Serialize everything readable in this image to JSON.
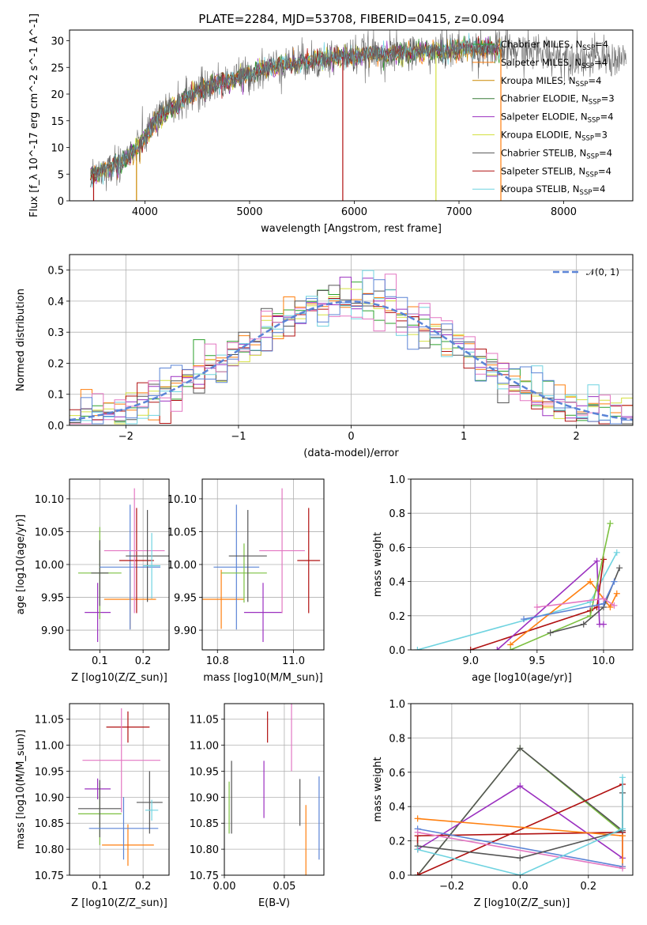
{
  "figure_title": "PLATE=2284, MJD=53708, FIBERID=0415, z=0.094",
  "chart_data": [
    {
      "id": "spectrum",
      "type": "line",
      "title": "PLATE=2284, MJD=53708, FIBERID=0415, z=0.094",
      "xlabel": "wavelength [Angstrom, rest frame]",
      "ylabel": "Flux [f_λ 10^-17 erg cm^-2 s^-1 A^-1]",
      "xlim": [
        3280,
        8660
      ],
      "ylim": [
        0,
        32
      ],
      "xticks": [
        4000,
        5000,
        6000,
        7000,
        8000
      ],
      "yticks": [
        0,
        5,
        10,
        15,
        20,
        25,
        30
      ],
      "grid": false,
      "legend_position": "top-right",
      "series": [
        {
          "name": "Chabrier MILES, N_SSP=4",
          "color": "#2ca02c"
        },
        {
          "name": "Salpeter MILES, N_SSP=4",
          "color": "#ff7f0e"
        },
        {
          "name": "Kroupa MILES, N_SSP=4",
          "color": "#cc8800"
        },
        {
          "name": "Chabrier ELODIE, N_SSP=3",
          "color": "#3a7d3a"
        },
        {
          "name": "Salpeter ELODIE, N_SSP=4",
          "color": "#9b30c0"
        },
        {
          "name": "Kroupa ELODIE, N_SSP=3",
          "color": "#d4e040"
        },
        {
          "name": "Chabrier STELIB, N_SSP=4",
          "color": "#555555"
        },
        {
          "name": "Salpeter STELIB, N_SSP=4",
          "color": "#b01010"
        },
        {
          "name": "Kroupa STELIB, N_SSP=4",
          "color": "#6fd3e0"
        }
      ],
      "spectrum_shape": {
        "x": [
          3500,
          3700,
          3900,
          4100,
          4300,
          4500,
          4700,
          4900,
          5100,
          5300,
          5500,
          5700,
          5900,
          6100,
          6300,
          6500,
          6700,
          6900,
          7100,
          7300,
          7500,
          7700,
          7900,
          8100,
          8300,
          8500
        ],
        "y": [
          5,
          6.5,
          9,
          15,
          18,
          20.5,
          22,
          23,
          24.5,
          25.5,
          26,
          26.5,
          27,
          27.5,
          27.5,
          27.8,
          28,
          28.2,
          28.5,
          28.5,
          28.3,
          28,
          27.5,
          27,
          26.8,
          26.5
        ]
      }
    },
    {
      "id": "residuals",
      "type": "histogram",
      "xlabel": "(data-model)/error",
      "ylabel": "Normed distribution",
      "xlim": [
        -2.5,
        2.5
      ],
      "ylim": [
        0,
        0.55
      ],
      "xticks": [
        -2,
        -1,
        0,
        1,
        2
      ],
      "yticks": [
        0.0,
        0.1,
        0.2,
        0.3,
        0.4,
        0.5
      ],
      "grid": true,
      "legend_position": "top-right",
      "reference_curve": {
        "name": "𝒩(0, 1)",
        "color": "#5b84d6",
        "mean": 0,
        "sigma": 1
      },
      "hist_colors": [
        "#2ca02c",
        "#ff7f0e",
        "#9b30c0",
        "#d4e040",
        "#555555",
        "#b01010",
        "#6fd3e0",
        "#e377c2",
        "#5b84d6"
      ]
    },
    {
      "id": "age-vs-Z",
      "type": "scatter",
      "xlabel": "Z [log10(Z/Z_sun)]",
      "ylabel": "age  [log10(age/yr)]",
      "xlim": [
        0.03,
        0.26
      ],
      "ylim": [
        9.87,
        10.13
      ],
      "xticks": [
        0.1,
        0.2
      ],
      "yticks": [
        9.9,
        9.95,
        10.0,
        10.05,
        10.1
      ],
      "grid": true,
      "points": [
        {
          "color": "#9b30c0",
          "x": 0.095,
          "xerr": 0.03,
          "y": 9.927,
          "yerr": 0.045
        },
        {
          "color": "#7cc040",
          "x": 0.1,
          "xerr": 0.05,
          "y": 9.987,
          "yerr": 0.07
        },
        {
          "color": "#555555",
          "x": 0.1,
          "xerr": 0.02,
          "y": 9.987,
          "yerr": 0.05
        },
        {
          "color": "#ff7f0e",
          "x": 0.17,
          "xerr": 0.06,
          "y": 9.947,
          "yerr": 0.045
        },
        {
          "color": "#5b84d6",
          "x": 0.17,
          "xerr": 0.07,
          "y": 9.996,
          "yerr": 0.095
        },
        {
          "color": "#b01010",
          "x": 0.185,
          "xerr": 0.04,
          "y": 10.006,
          "yerr": 0.08
        },
        {
          "color": "#e377c2",
          "x": 0.18,
          "xerr": 0.07,
          "y": 10.021,
          "yerr": 0.095
        },
        {
          "color": "#555555",
          "x": 0.21,
          "xerr": 0.05,
          "y": 10.013,
          "yerr": 0.07
        },
        {
          "color": "#6fd3e0",
          "x": 0.22,
          "xerr": 0.02,
          "y": 9.998,
          "yerr": 0.05
        }
      ]
    },
    {
      "id": "age-vs-mass",
      "type": "scatter",
      "xlabel": "mass [log10(M/M_sun)]",
      "ylabel": "",
      "xlim": [
        10.76,
        11.08
      ],
      "ylim": [
        9.87,
        10.13
      ],
      "xticks": [
        10.8,
        11.0
      ],
      "yticks": [
        9.9,
        9.95,
        10.0,
        10.05,
        10.1
      ],
      "grid": true,
      "points": [
        {
          "color": "#ff7f0e",
          "x": 10.81,
          "xerr": 0.06,
          "y": 9.947,
          "yerr": 0.045
        },
        {
          "color": "#5b84d6",
          "x": 10.85,
          "xerr": 0.06,
          "y": 9.996,
          "yerr": 0.095
        },
        {
          "color": "#7cc040",
          "x": 10.87,
          "xerr": 0.06,
          "y": 9.987,
          "yerr": 0.045
        },
        {
          "color": "#555555",
          "x": 10.88,
          "xerr": 0.05,
          "y": 10.013,
          "yerr": 0.07
        },
        {
          "color": "#9b30c0",
          "x": 10.92,
          "xerr": 0.05,
          "y": 9.927,
          "yerr": 0.045
        },
        {
          "color": "#e377c2",
          "x": 10.97,
          "xerr": 0.06,
          "y": 10.021,
          "yerr": 0.095
        },
        {
          "color": "#b01010",
          "x": 11.04,
          "xerr": 0.03,
          "y": 10.006,
          "yerr": 0.08
        }
      ]
    },
    {
      "id": "weight-vs-age",
      "type": "line",
      "xlabel": "age  [log10(age/yr)]",
      "ylabel": "mass weight",
      "xlim": [
        8.55,
        10.22
      ],
      "ylim": [
        0,
        1.0
      ],
      "xticks": [
        9.0,
        9.5,
        10.0
      ],
      "yticks": [
        0.0,
        0.2,
        0.4,
        0.6,
        0.8,
        1.0
      ],
      "grid": true,
      "series": [
        {
          "color": "#6fd3e0",
          "x": [
            8.6,
            9.9,
            10.1
          ],
          "y": [
            0.0,
            0.28,
            0.57
          ]
        },
        {
          "color": "#b01010",
          "x": [
            9.0,
            9.9,
            9.95,
            10.0
          ],
          "y": [
            0.0,
            0.23,
            0.25,
            0.53
          ]
        },
        {
          "color": "#ff7f0e",
          "x": [
            9.3,
            9.9,
            10.05,
            10.1
          ],
          "y": [
            0.03,
            0.4,
            0.25,
            0.33
          ]
        },
        {
          "color": "#9b30c0",
          "x": [
            9.2,
            9.95,
            9.97,
            10.0
          ],
          "y": [
            0.0,
            0.52,
            0.15,
            0.15
          ]
        },
        {
          "color": "#7cc040",
          "x": [
            9.3,
            9.9,
            10.05
          ],
          "y": [
            0.0,
            0.2,
            0.74
          ]
        },
        {
          "color": "#555555",
          "x": [
            9.6,
            9.85,
            10.0,
            10.12
          ],
          "y": [
            0.1,
            0.15,
            0.25,
            0.48
          ]
        },
        {
          "color": "#5b84d6",
          "x": [
            9.4,
            10.0,
            10.08
          ],
          "y": [
            0.18,
            0.27,
            0.4
          ]
        },
        {
          "color": "#e377c2",
          "x": [
            9.5,
            10.0,
            10.08
          ],
          "y": [
            0.25,
            0.3,
            0.26
          ]
        }
      ]
    },
    {
      "id": "mass-vs-Z",
      "type": "scatter",
      "xlabel": "Z [log10(Z/Z_sun)]",
      "ylabel": "mass [log10(M/M_sun)]",
      "xlim": [
        0.03,
        0.26
      ],
      "ylim": [
        10.75,
        11.08
      ],
      "xticks": [
        0.1,
        0.2
      ],
      "yticks": [
        10.75,
        10.8,
        10.85,
        10.9,
        10.95,
        11.0,
        11.05
      ],
      "grid": true,
      "points": [
        {
          "color": "#9b30c0",
          "x": 0.095,
          "xerr": 0.03,
          "y": 10.916,
          "yerr": 0.02
        },
        {
          "color": "#7cc040",
          "x": 0.1,
          "xerr": 0.05,
          "y": 10.868,
          "yerr": 0.06
        },
        {
          "color": "#555555",
          "x": 0.1,
          "xerr": 0.05,
          "y": 10.878,
          "yerr": 0.055
        },
        {
          "color": "#ff7f0e",
          "x": 0.165,
          "xerr": 0.06,
          "y": 10.808,
          "yerr": 0.04
        },
        {
          "color": "#5b84d6",
          "x": 0.155,
          "xerr": 0.08,
          "y": 10.84,
          "yerr": 0.06
        },
        {
          "color": "#b01010",
          "x": 0.165,
          "xerr": 0.05,
          "y": 11.035,
          "yerr": 0.03
        },
        {
          "color": "#e377c2",
          "x": 0.15,
          "xerr": 0.09,
          "y": 10.971,
          "yerr": 0.1
        },
        {
          "color": "#555555",
          "x": 0.215,
          "xerr": 0.03,
          "y": 10.89,
          "yerr": 0.06
        },
        {
          "color": "#6fd3e0",
          "x": 0.22,
          "xerr": 0.015,
          "y": 10.875,
          "yerr": 0.02
        }
      ]
    },
    {
      "id": "mass-vs-EBV",
      "type": "scatter",
      "xlabel": "E(B-V)",
      "ylabel": "",
      "xlim": [
        0.0,
        0.083
      ],
      "ylim": [
        10.75,
        11.08
      ],
      "xticks": [
        0.0,
        0.05
      ],
      "yticks": [
        10.75,
        10.8,
        10.85,
        10.9,
        10.95,
        11.0,
        11.05
      ],
      "grid": true,
      "points": [
        {
          "color": "#7cc040",
          "x": 0.004,
          "y": 10.88,
          "yerr": 0.05
        },
        {
          "color": "#555555",
          "x": 0.006,
          "y": 10.9,
          "yerr": 0.07
        },
        {
          "color": "#9b30c0",
          "x": 0.033,
          "y": 10.915,
          "yerr": 0.055
        },
        {
          "color": "#b01010",
          "x": 0.036,
          "y": 11.035,
          "yerr": 0.03
        },
        {
          "color": "#e377c2",
          "x": 0.056,
          "y": 11.02,
          "yerr": 0.07
        },
        {
          "color": "#555555",
          "x": 0.063,
          "y": 10.89,
          "yerr": 0.045
        },
        {
          "color": "#ff7f0e",
          "x": 0.068,
          "y": 10.81,
          "yerr": 0.075
        },
        {
          "color": "#5b84d6",
          "x": 0.079,
          "y": 10.86,
          "yerr": 0.08
        }
      ]
    },
    {
      "id": "weight-vs-Z",
      "type": "line",
      "xlabel": "Z [log10(Z/Z_sun)]",
      "ylabel": "mass weight",
      "xlim": [
        -0.32,
        0.33
      ],
      "ylim": [
        0,
        1.0
      ],
      "xticks": [
        -0.2,
        0.0,
        0.2
      ],
      "yticks": [
        0.0,
        0.2,
        0.4,
        0.6,
        0.8,
        1.0
      ],
      "grid": true,
      "series": [
        {
          "color": "#7cc040",
          "x": [
            -0.3,
            0.0,
            0.3
          ],
          "y": [
            0.0,
            0.74,
            0.25
          ]
        },
        {
          "color": "#555555",
          "x": [
            -0.3,
            0.0,
            0.3
          ],
          "y": [
            0.0,
            0.74,
            0.26
          ]
        },
        {
          "color": "#9b30c0",
          "x": [
            -0.3,
            0.0,
            0.3,
            0.3
          ],
          "y": [
            0.15,
            0.52,
            0.1,
            0.25
          ]
        },
        {
          "color": "#b01010",
          "x": [
            -0.3,
            0.3,
            0.3,
            -0.3,
            -0.3
          ],
          "y": [
            0.0,
            0.53,
            0.25,
            0.23,
            0.15
          ]
        },
        {
          "color": "#ff7f0e",
          "x": [
            -0.3,
            0.3,
            0.3
          ],
          "y": [
            0.33,
            0.23,
            0.05
          ]
        },
        {
          "color": "#5b84d6",
          "x": [
            -0.3,
            0.3
          ],
          "y": [
            0.27,
            0.05
          ]
        },
        {
          "color": "#e377c2",
          "x": [
            -0.3,
            0.3
          ],
          "y": [
            0.25,
            0.04
          ]
        },
        {
          "color": "#555555",
          "x": [
            -0.3,
            0.0,
            0.3,
            0.3
          ],
          "y": [
            0.17,
            0.1,
            0.26,
            0.48
          ]
        },
        {
          "color": "#6fd3e0",
          "x": [
            -0.3,
            0.0,
            0.3,
            0.3
          ],
          "y": [
            0.15,
            0.0,
            0.27,
            0.57
          ]
        }
      ]
    }
  ]
}
